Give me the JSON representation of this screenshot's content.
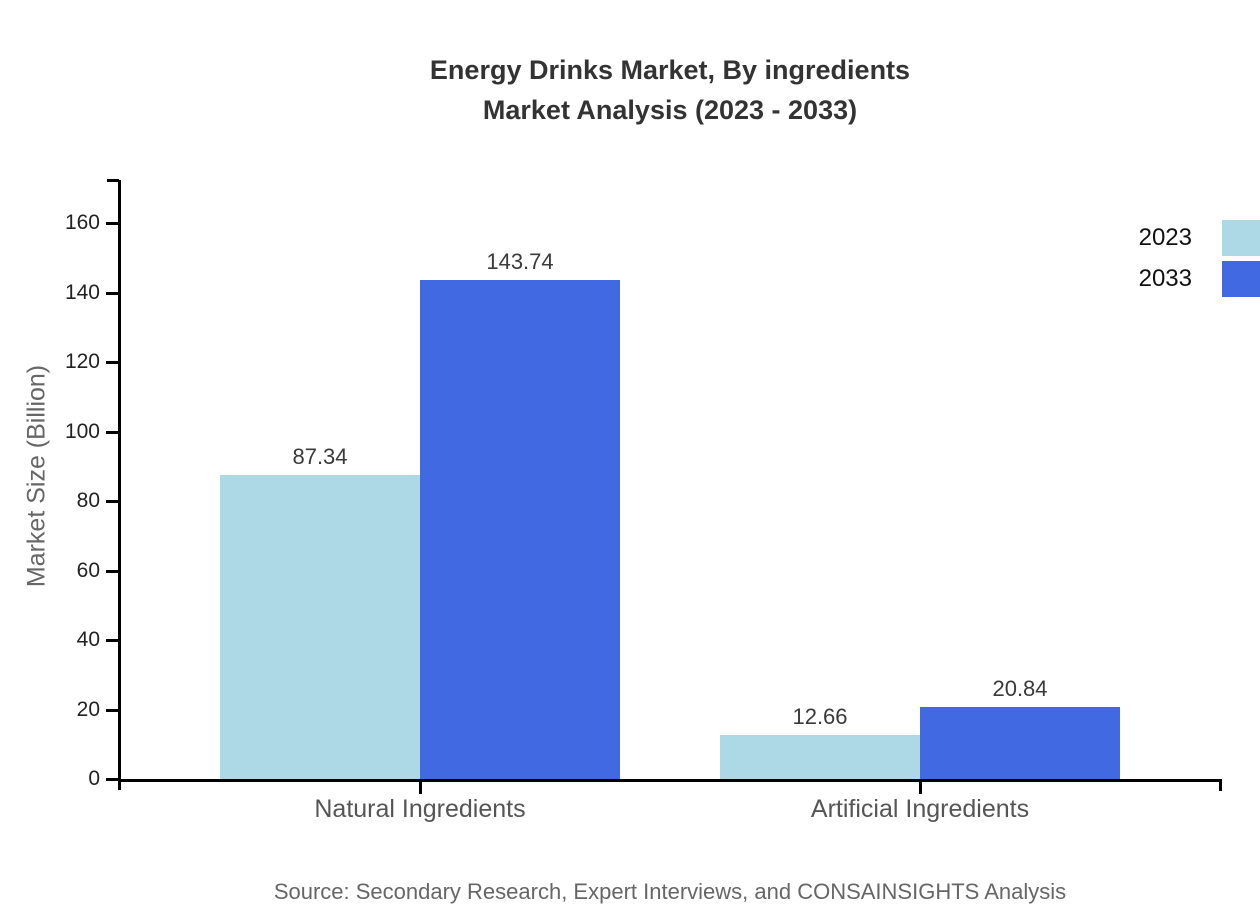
{
  "title": {
    "line1": "Energy Drinks Market, By ingredients",
    "line2": "Market Analysis (2023 - 2033)"
  },
  "source_note": "Source: Secondary Research, Expert Interviews, and CONSAINSIGHTS Analysis",
  "chart_data": {
    "type": "bar",
    "title": "Energy Drinks Market, By ingredients Market Analysis (2023 - 2033)",
    "categories": [
      "Natural Ingredients",
      "Artificial Ingredients"
    ],
    "series": [
      {
        "name": "2023",
        "color": "#ADD8E6",
        "values": [
          87.34,
          12.66
        ]
      },
      {
        "name": "2033",
        "color": "#4169E1",
        "values": [
          143.74,
          20.84
        ]
      }
    ],
    "value_labels": [
      "87.34",
      "143.74",
      "12.66",
      "20.84"
    ],
    "xlabel": "",
    "ylabel": "Market Size (Billion)",
    "yticks": [
      0,
      20,
      40,
      60,
      80,
      100,
      120,
      140,
      160
    ],
    "ylim": [
      0,
      172.7
    ],
    "grid": false,
    "legend_position": "top-right",
    "axis_color": "#000000",
    "text_colors": {
      "title": "#333333",
      "tick_labels": "#222222",
      "category_labels": "#555555",
      "value_labels": "#3a3a3a",
      "axis_title": "#666666",
      "source": "#666666"
    }
  }
}
